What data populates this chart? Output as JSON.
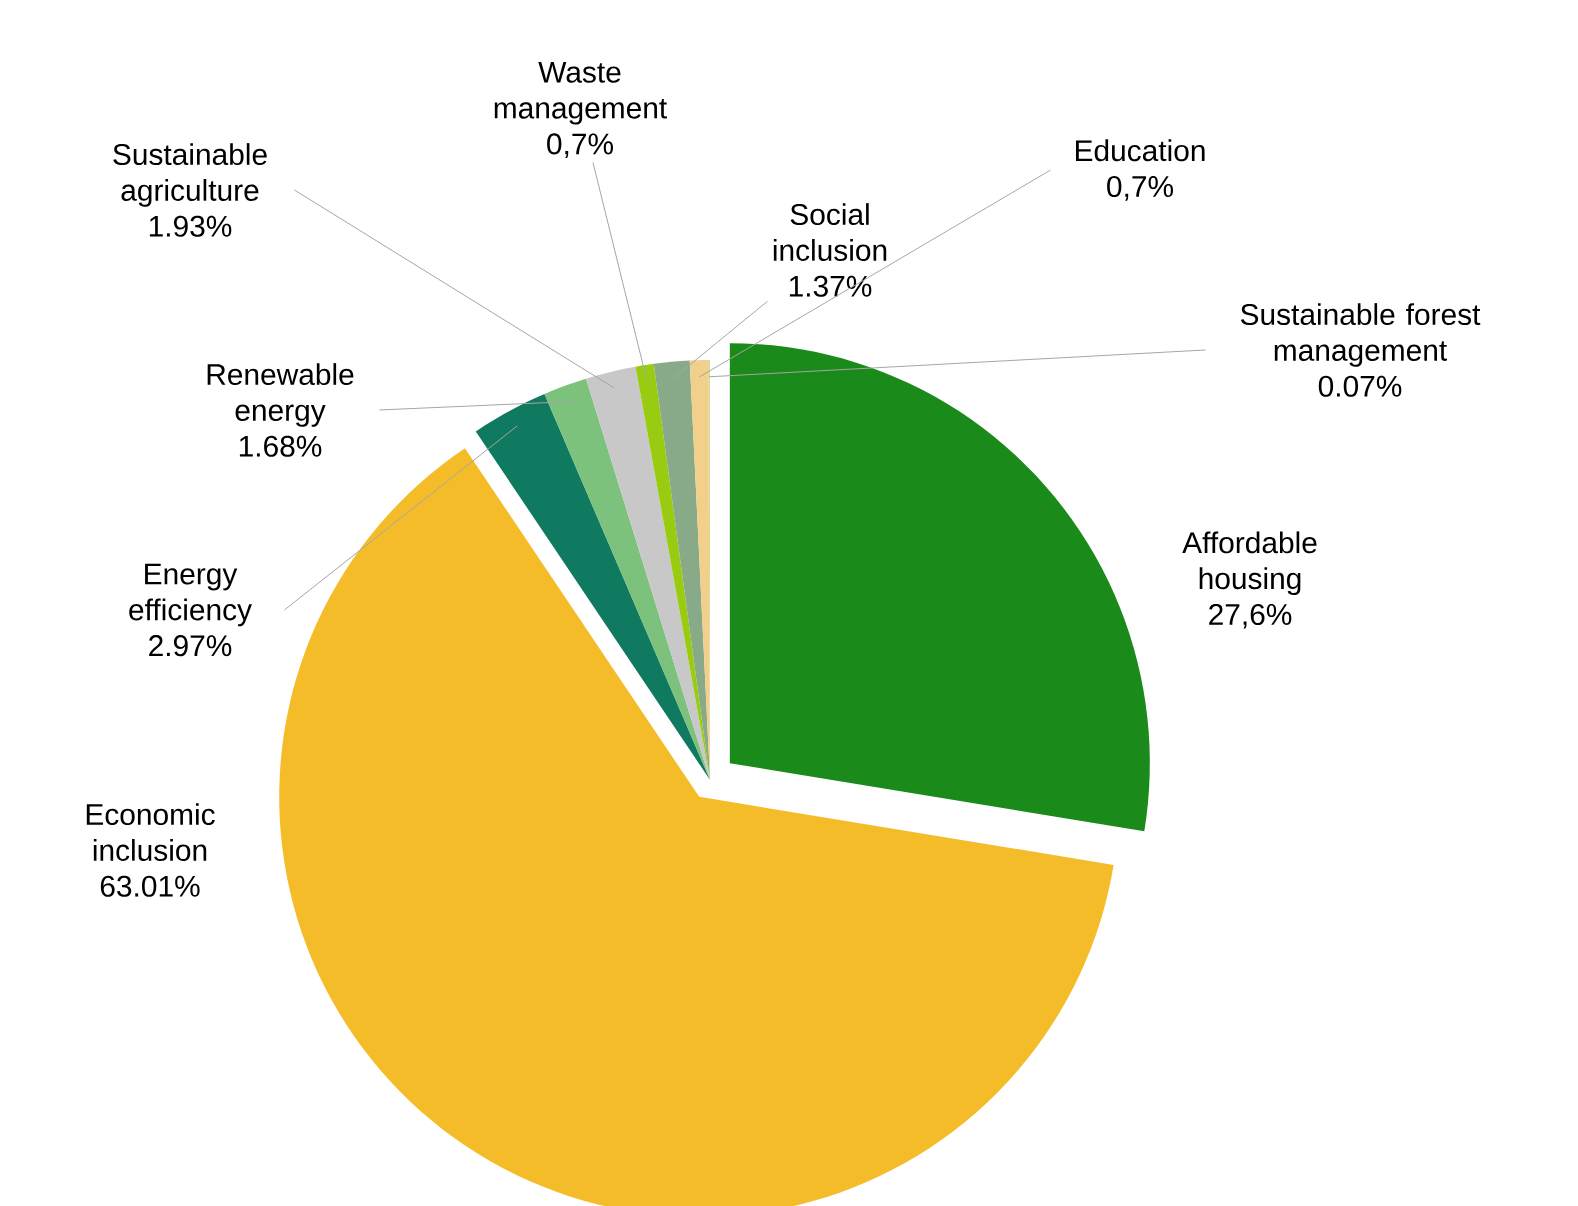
{
  "chart_data": {
    "type": "pie",
    "categories": [
      "Affordable housing",
      "Economic inclusion",
      "Energy efficiency",
      "Renewable energy",
      "Sustainable agriculture",
      "Waste management",
      "Social inclusion",
      "Education",
      "Sustainable forest management"
    ],
    "values": [
      27.6,
      63.01,
      2.97,
      1.68,
      1.93,
      0.7,
      1.37,
      0.7,
      0.07
    ],
    "value_labels": [
      "27,6%",
      "63.01%",
      "2.97%",
      "1.68%",
      "1.93%",
      "0,7%",
      "1.37%",
      "0,7%",
      "0.07%"
    ],
    "colors": [
      "#1a8a1a",
      "#f5bc2a",
      "#0f7a60",
      "#7cc17c",
      "#c8c8c8",
      "#99cc11",
      "#88aa88",
      "#f3cf8c",
      "#d8d890"
    ]
  }
}
